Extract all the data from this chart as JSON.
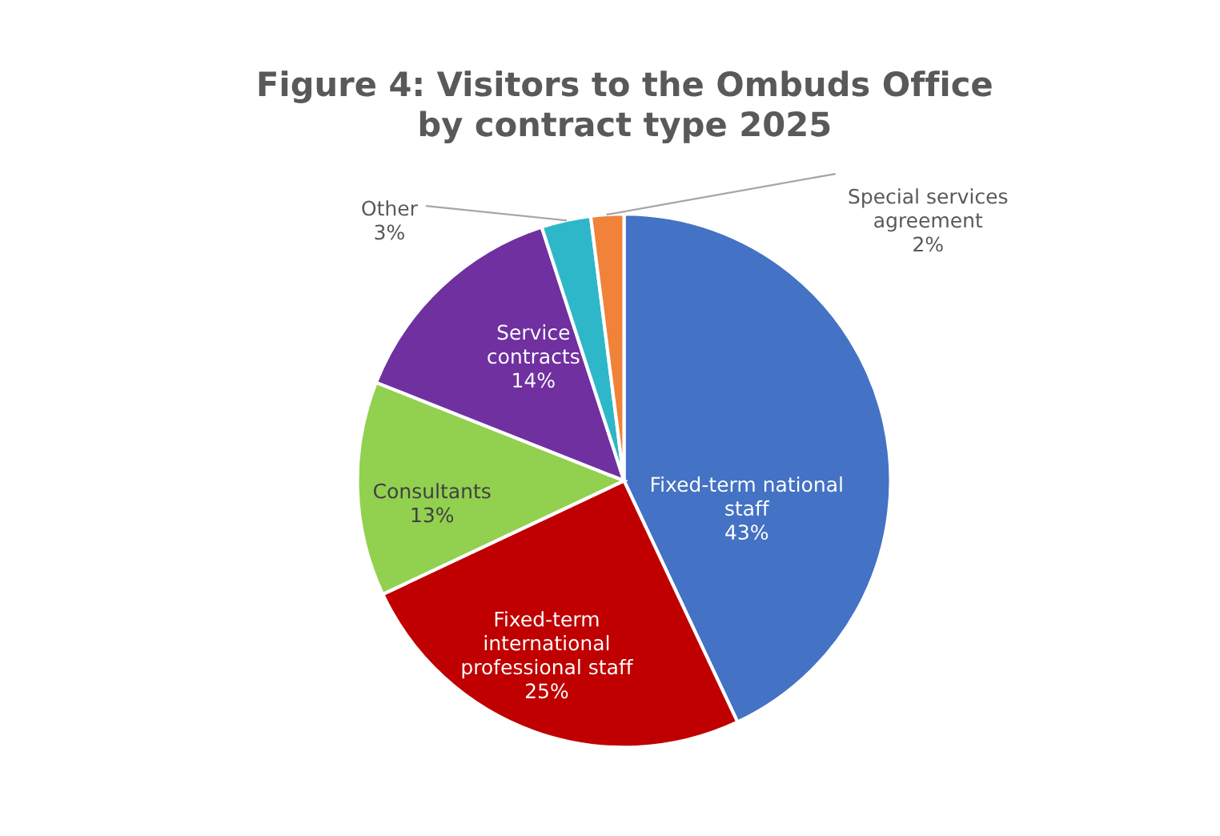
{
  "chart_data": {
    "type": "pie",
    "title": "Figure 4: Visitors to the Ombuds Office by contract type 2025",
    "categories": [
      "Fixed-term national staff",
      "Fixed-term international professional staff",
      "Consultants",
      "Service contracts",
      "Other",
      "Special services agreement"
    ],
    "values": [
      43,
      25,
      13,
      14,
      3,
      2
    ],
    "colors": [
      "#4472c4",
      "#c00000",
      "#92d050",
      "#7030a0",
      "#2eb7c8",
      "#f0823a"
    ],
    "value_labels": [
      "43%",
      "25%",
      "13%",
      "14%",
      "3%",
      "2%"
    ],
    "legend": false
  }
}
